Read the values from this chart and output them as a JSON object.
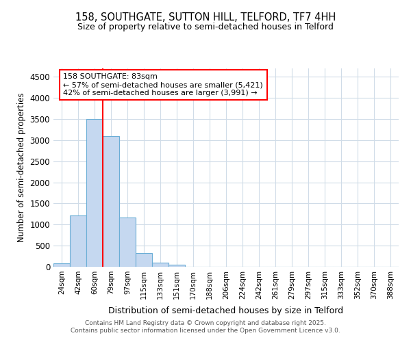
{
  "title_line1": "158, SOUTHGATE, SUTTON HILL, TELFORD, TF7 4HH",
  "title_line2": "Size of property relative to semi-detached houses in Telford",
  "xlabel": "Distribution of semi-detached houses by size in Telford",
  "ylabel": "Number of semi-detached properties",
  "categories": [
    "24sqm",
    "42sqm",
    "60sqm",
    "79sqm",
    "97sqm",
    "115sqm",
    "133sqm",
    "151sqm",
    "170sqm",
    "188sqm",
    "206sqm",
    "224sqm",
    "242sqm",
    "261sqm",
    "279sqm",
    "297sqm",
    "315sqm",
    "333sqm",
    "352sqm",
    "370sqm",
    "388sqm"
  ],
  "values": [
    75,
    1220,
    3500,
    3100,
    1160,
    330,
    100,
    55,
    0,
    0,
    0,
    0,
    0,
    0,
    0,
    0,
    0,
    0,
    0,
    0,
    0
  ],
  "bar_color": "#c5d8f0",
  "bar_edge_color": "#6baed6",
  "annotation_line1": "158 SOUTHGATE: 83sqm",
  "annotation_line2": "← 57% of semi-detached houses are smaller (5,421)",
  "annotation_line3": "42% of semi-detached houses are larger (3,991) →",
  "ylim": [
    0,
    4700
  ],
  "yticks": [
    0,
    500,
    1000,
    1500,
    2000,
    2500,
    3000,
    3500,
    4000,
    4500
  ],
  "red_line_bin": 3,
  "footer_line1": "Contains HM Land Registry data © Crown copyright and database right 2025.",
  "footer_line2": "Contains public sector information licensed under the Open Government Licence v3.0.",
  "background_color": "#ffffff",
  "plot_background": "#ffffff",
  "grid_color": "#d0dce8"
}
